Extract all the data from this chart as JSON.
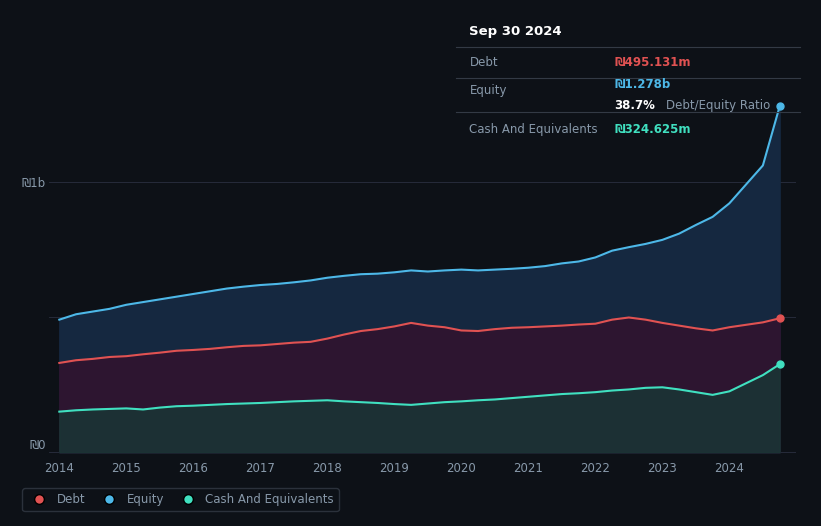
{
  "bg_color": "#0d1117",
  "plot_bg_color": "#0d1117",
  "title_box": {
    "date": "Sep 30 2024",
    "debt_label": "Debt",
    "debt_value": "₪495.131m",
    "equity_label": "Equity",
    "equity_value": "₪1.278b",
    "ratio_value": "38.7%",
    "ratio_label": "Debt/Equity Ratio",
    "cash_label": "Cash And Equivalents",
    "cash_value": "₪324.625m"
  },
  "ylabel_top": "₪1b",
  "ylabel_bottom": "₪0",
  "x_ticks": [
    2014,
    2015,
    2016,
    2017,
    2018,
    2019,
    2020,
    2021,
    2022,
    2023,
    2024
  ],
  "legend": [
    {
      "label": "Debt",
      "color": "#e05252"
    },
    {
      "label": "Equity",
      "color": "#4db8e8"
    },
    {
      "label": "Cash And Equivalents",
      "color": "#40e0c0"
    }
  ],
  "equity_color": "#4db8e8",
  "debt_color": "#e05252",
  "cash_color": "#40e0c0",
  "equity_fill": "#152840",
  "debt_fill": "#2d1530",
  "cash_fill": "#1a3535",
  "grid_color": "#2a3040",
  "axis_text_color": "#8899aa",
  "years": [
    2014.0,
    2014.25,
    2014.5,
    2014.75,
    2015.0,
    2015.25,
    2015.5,
    2015.75,
    2016.0,
    2016.25,
    2016.5,
    2016.75,
    2017.0,
    2017.25,
    2017.5,
    2017.75,
    2018.0,
    2018.25,
    2018.5,
    2018.75,
    2019.0,
    2019.25,
    2019.5,
    2019.75,
    2020.0,
    2020.25,
    2020.5,
    2020.75,
    2021.0,
    2021.25,
    2021.5,
    2021.75,
    2022.0,
    2022.25,
    2022.5,
    2022.75,
    2023.0,
    2023.25,
    2023.5,
    2023.75,
    2024.0,
    2024.5,
    2024.75
  ],
  "equity": [
    490,
    510,
    520,
    530,
    545,
    555,
    565,
    575,
    585,
    595,
    605,
    612,
    618,
    622,
    628,
    635,
    645,
    652,
    658,
    660,
    665,
    672,
    668,
    672,
    675,
    672,
    675,
    678,
    682,
    688,
    698,
    705,
    720,
    745,
    758,
    770,
    785,
    808,
    840,
    870,
    920,
    1060,
    1278
  ],
  "debt": [
    330,
    340,
    345,
    352,
    355,
    362,
    368,
    375,
    378,
    382,
    388,
    393,
    395,
    400,
    405,
    408,
    420,
    435,
    448,
    455,
    465,
    478,
    468,
    462,
    450,
    448,
    455,
    460,
    462,
    465,
    468,
    472,
    475,
    490,
    498,
    490,
    478,
    468,
    458,
    450,
    462,
    480,
    495
  ],
  "cash": [
    150,
    155,
    158,
    160,
    162,
    158,
    165,
    170,
    172,
    175,
    178,
    180,
    182,
    185,
    188,
    190,
    192,
    188,
    185,
    182,
    178,
    175,
    180,
    185,
    188,
    192,
    195,
    200,
    205,
    210,
    215,
    218,
    222,
    228,
    232,
    238,
    240,
    232,
    222,
    212,
    225,
    285,
    325
  ]
}
